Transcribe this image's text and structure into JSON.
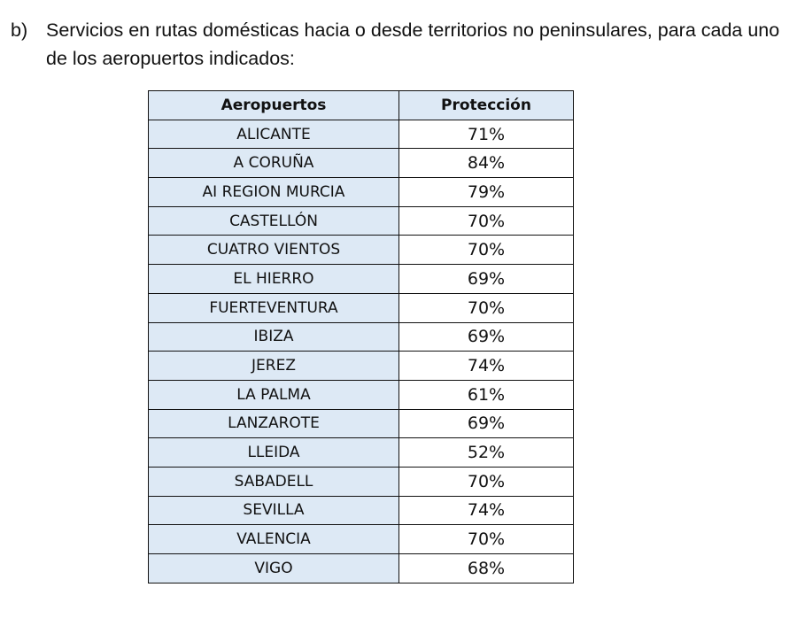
{
  "paragraph": {
    "label": "b)",
    "text": "Servicios en rutas domésticas hacia o desde territorios no peninsulares, para cada uno de los aeropuertos indicados:"
  },
  "table": {
    "headers": [
      "Aeropuertos",
      "Protección"
    ],
    "rows": [
      [
        "ALICANTE",
        "71%"
      ],
      [
        "A CORUÑA",
        "84%"
      ],
      [
        "AI REGION MURCIA",
        "79%"
      ],
      [
        "CASTELLÓN",
        "70%"
      ],
      [
        "CUATRO VIENTOS",
        "70%"
      ],
      [
        "EL HIERRO",
        "69%"
      ],
      [
        "FUERTEVENTURA",
        "70%"
      ],
      [
        "IBIZA",
        "69%"
      ],
      [
        "JEREZ",
        "74%"
      ],
      [
        "LA PALMA",
        "61%"
      ],
      [
        "LANZAROTE",
        "69%"
      ],
      [
        "LLEIDA",
        "52%"
      ],
      [
        "SABADELL",
        "70%"
      ],
      [
        "SEVILLA",
        "74%"
      ],
      [
        "VALENCIA",
        "70%"
      ],
      [
        "VIGO",
        "68%"
      ]
    ]
  }
}
